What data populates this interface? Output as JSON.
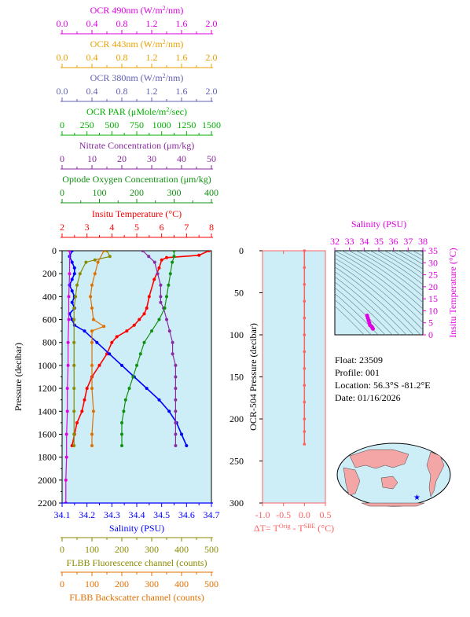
{
  "colors": {
    "ocr490": "#e000e0",
    "ocr443": "#e8a000",
    "ocr380": "#6060b0",
    "par": "#00b000",
    "nitrate": "#8a2aa0",
    "oxygen": "#109010",
    "temperature": "#ff0000",
    "salinity": "#0000ff",
    "fluorescence": "#8a8a00",
    "backscatter": "#e07000",
    "plot_bg": "#cdeef7",
    "dt_line": "#ff6060",
    "ts_blob": "#e000e0"
  },
  "top_axes": [
    {
      "key": "ocr490",
      "label": "OCR 490nm (W/m²/nm)",
      "ticks": [
        "0.0",
        "0.4",
        "0.8",
        "1.2",
        "1.6",
        "2.0"
      ]
    },
    {
      "key": "ocr443",
      "label": "OCR 443nm (W/m²/nm)",
      "ticks": [
        "0.0",
        "0.4",
        "0.8",
        "1.2",
        "1.6",
        "2.0"
      ]
    },
    {
      "key": "ocr380",
      "label": "OCR 380nm (W/m²/nm)",
      "ticks": [
        "0.0",
        "0.4",
        "0.8",
        "1.2",
        "1.6",
        "2.0"
      ]
    },
    {
      "key": "par",
      "label": "OCR PAR (μMole/m²/sec)",
      "ticks": [
        "0",
        "250",
        "500",
        "750",
        "1000",
        "1250",
        "1500"
      ]
    },
    {
      "key": "nitrate",
      "label": "Nitrate Concentration (μm/kg)",
      "ticks": [
        "0",
        "10",
        "20",
        "30",
        "40",
        "50"
      ]
    },
    {
      "key": "oxygen",
      "label": "Optode Oxygen Concentration (μm/kg)",
      "ticks": [
        "0",
        "100",
        "200",
        "300",
        "400"
      ]
    },
    {
      "key": "temperature",
      "label": "Insitu Temperature (°C)",
      "ticks": [
        "2",
        "3",
        "4",
        "5",
        "6",
        "7",
        "8"
      ]
    }
  ],
  "bottom_axes": [
    {
      "key": "salinity",
      "label": "Salinity (PSU)",
      "ticks": [
        "34.1",
        "34.2",
        "34.3",
        "34.4",
        "34.5",
        "34.6",
        "34.7"
      ]
    },
    {
      "key": "fluorescence",
      "label": "FLBB Fluorescence channel (counts)",
      "ticks": [
        "0",
        "100",
        "200",
        "300",
        "400",
        "500"
      ]
    },
    {
      "key": "backscatter",
      "label": "FLBB Backscatter channel (counts)",
      "ticks": [
        "0",
        "100",
        "200",
        "300",
        "400",
        "500"
      ]
    }
  ],
  "main_y": {
    "label": "Pressure (decibar)",
    "ticks": [
      "0",
      "200",
      "400",
      "600",
      "800",
      "1000",
      "1200",
      "1400",
      "1600",
      "1800",
      "2000",
      "2200"
    ]
  },
  "dt_panel": {
    "ylabel": "OCR-504 Pressure (decibar)",
    "yticks": [
      "0",
      "50",
      "100",
      "150",
      "200",
      "250",
      "300"
    ],
    "xticks": [
      "-1.0",
      "-0.5",
      "0.0",
      "0.5"
    ],
    "xlabel_main": "ΔT= T",
    "xlabel_sup1": "Orig",
    "xlabel_mid": " - T",
    "xlabel_sup2": "SBE",
    "xlabel_end": " (°C)"
  },
  "ts_panel": {
    "xlabel": "Salinity (PSU)",
    "ylabel": "Insitu Temperature (°C)",
    "xticks": [
      "32",
      "33",
      "34",
      "35",
      "36",
      "37",
      "38"
    ],
    "yticks": [
      "0",
      "5",
      "10",
      "15",
      "20",
      "25",
      "30",
      "35"
    ]
  },
  "info": {
    "float": "Float:  23509",
    "profile": "Profile:  001",
    "location": "Location:  56.3°S  -81.2°E",
    "date": "Date:  01/16/2026"
  },
  "chart_data": [
    {
      "type": "line",
      "title": "",
      "ylabel": "Pressure (decibar)",
      "ylim": [
        2200,
        0
      ],
      "y_reversed": true,
      "series": [
        {
          "name": "Insitu Temperature (°C)",
          "key": "temperature",
          "xlim": [
            2,
            8
          ],
          "points": [
            [
              7.9,
              0
            ],
            [
              7.5,
              40
            ],
            [
              6.2,
              60
            ],
            [
              6.0,
              80
            ],
            [
              5.9,
              150
            ],
            [
              5.7,
              250
            ],
            [
              5.5,
              400
            ],
            [
              5.4,
              500
            ],
            [
              5.3,
              550
            ],
            [
              5.1,
              600
            ],
            [
              4.9,
              650
            ],
            [
              4.6,
              700
            ],
            [
              4.2,
              750
            ],
            [
              4.0,
              800
            ],
            [
              3.8,
              900
            ],
            [
              3.5,
              1000
            ],
            [
              3.2,
              1100
            ],
            [
              3.0,
              1200
            ],
            [
              2.9,
              1300
            ],
            [
              2.8,
              1400
            ],
            [
              2.6,
              1500
            ],
            [
              2.5,
              1600
            ],
            [
              2.4,
              1700
            ]
          ]
        },
        {
          "name": "Salinity (PSU)",
          "key": "salinity",
          "xlim": [
            34.1,
            34.7
          ],
          "points": [
            [
              34.14,
              0
            ],
            [
              34.13,
              50
            ],
            [
              34.14,
              100
            ],
            [
              34.15,
              150
            ],
            [
              34.15,
              200
            ],
            [
              34.14,
              250
            ],
            [
              34.13,
              300
            ],
            [
              34.14,
              350
            ],
            [
              34.15,
              400
            ],
            [
              34.14,
              450
            ],
            [
              34.15,
              500
            ],
            [
              34.13,
              550
            ],
            [
              34.14,
              600
            ],
            [
              34.15,
              650
            ],
            [
              34.19,
              700
            ],
            [
              34.24,
              800
            ],
            [
              34.29,
              900
            ],
            [
              34.34,
              1000
            ],
            [
              34.39,
              1100
            ],
            [
              34.44,
              1200
            ],
            [
              34.49,
              1300
            ],
            [
              34.53,
              1400
            ],
            [
              34.56,
              1500
            ],
            [
              34.58,
              1600
            ],
            [
              34.6,
              1700
            ]
          ]
        },
        {
          "name": "Nitrate Concentration (μm/kg)",
          "key": "nitrate",
          "xlim": [
            0,
            50
          ],
          "points": [
            [
              27,
              0
            ],
            [
              29,
              50
            ],
            [
              31,
              100
            ],
            [
              32,
              200
            ],
            [
              33,
              300
            ],
            [
              33,
              400
            ],
            [
              33,
              450
            ],
            [
              34,
              500
            ],
            [
              35,
              600
            ],
            [
              36,
              700
            ],
            [
              37,
              800
            ],
            [
              37,
              900
            ],
            [
              38,
              1000
            ],
            [
              38,
              1100
            ],
            [
              38,
              1200
            ],
            [
              38,
              1300
            ],
            [
              38,
              1400
            ],
            [
              38,
              1500
            ],
            [
              38,
              1600
            ],
            [
              38,
              1700
            ]
          ]
        },
        {
          "name": "Optode Oxygen Concentration (μm/kg)",
          "key": "oxygen",
          "xlim": [
            0,
            400
          ],
          "points": [
            [
              300,
              0
            ],
            [
              300,
              50
            ],
            [
              295,
              100
            ],
            [
              290,
              200
            ],
            [
              285,
              300
            ],
            [
              280,
              400
            ],
            [
              275,
              500
            ],
            [
              260,
              600
            ],
            [
              240,
              700
            ],
            [
              220,
              800
            ],
            [
              210,
              900
            ],
            [
              200,
              1000
            ],
            [
              190,
              1100
            ],
            [
              180,
              1200
            ],
            [
              170,
              1300
            ],
            [
              165,
              1400
            ],
            [
              160,
              1500
            ],
            [
              160,
              1600
            ],
            [
              160,
              1700
            ]
          ]
        },
        {
          "name": "OCR 490nm (W/m²/nm)",
          "key": "ocr490",
          "xlim": [
            0,
            2
          ],
          "points": [
            [
              0.1,
              0
            ],
            [
              0.1,
              200
            ],
            [
              0.09,
              400
            ],
            [
              0.09,
              600
            ],
            [
              0.08,
              800
            ],
            [
              0.08,
              1000
            ],
            [
              0.07,
              1200
            ],
            [
              0.07,
              1400
            ],
            [
              0.06,
              1600
            ],
            [
              0.06,
              1800
            ],
            [
              0.05,
              2000
            ],
            [
              0.05,
              2200
            ]
          ]
        },
        {
          "name": "FLBB Fluorescence channel (counts)",
          "key": "fluorescence",
          "xlim": [
            0,
            500
          ],
          "points": [
            [
              150,
              0
            ],
            [
              160,
              50
            ],
            [
              110,
              80
            ],
            [
              80,
              100
            ],
            [
              60,
              200
            ],
            [
              50,
              300
            ],
            [
              45,
              400
            ],
            [
              40,
              500
            ],
            [
              40,
              600
            ],
            [
              40,
              800
            ],
            [
              40,
              1000
            ],
            [
              40,
              1200
            ],
            [
              40,
              1400
            ],
            [
              40,
              1600
            ],
            [
              40,
              1700
            ]
          ]
        },
        {
          "name": "FLBB Backscatter channel (counts)",
          "key": "backscatter",
          "xlim": [
            0,
            500
          ],
          "points": [
            [
              140,
              0
            ],
            [
              120,
              100
            ],
            [
              110,
              200
            ],
            [
              100,
              300
            ],
            [
              95,
              400
            ],
            [
              100,
              500
            ],
            [
              105,
              600
            ],
            [
              140,
              660
            ],
            [
              100,
              700
            ],
            [
              100,
              800
            ],
            [
              100,
              1000
            ],
            [
              100,
              1200
            ],
            [
              105,
              1400
            ],
            [
              100,
              1600
            ],
            [
              100,
              1700
            ]
          ]
        }
      ]
    },
    {
      "type": "line",
      "title": "",
      "xlabel": "ΔT= TOrig - TSBE (°C)",
      "ylabel": "OCR-504 Pressure (decibar)",
      "xlim": [
        -1.0,
        0.5
      ],
      "ylim": [
        300,
        0
      ],
      "series": [
        {
          "name": "",
          "points": [
            [
              0,
              0
            ],
            [
              0,
              20
            ],
            [
              0,
              40
            ],
            [
              0,
              60
            ],
            [
              0,
              80
            ],
            [
              0,
              100
            ],
            [
              0,
              120
            ],
            [
              0,
              140
            ],
            [
              0,
              160
            ],
            [
              0,
              180
            ],
            [
              0,
              200
            ],
            [
              0,
              215
            ],
            [
              0,
              230
            ]
          ]
        }
      ]
    },
    {
      "type": "scatter",
      "title": "",
      "xlabel": "Salinity (PSU)",
      "ylabel": "Insitu Temperature (°C)",
      "xlim": [
        32,
        38
      ],
      "ylim": [
        0,
        35
      ],
      "series": [
        {
          "name": "",
          "points": [
            [
              34.2,
              8
            ],
            [
              34.25,
              7
            ],
            [
              34.3,
              6
            ],
            [
              34.35,
              5
            ],
            [
              34.4,
              4
            ],
            [
              34.5,
              3.5
            ],
            [
              34.55,
              3
            ],
            [
              34.6,
              2.5
            ]
          ]
        }
      ]
    }
  ]
}
